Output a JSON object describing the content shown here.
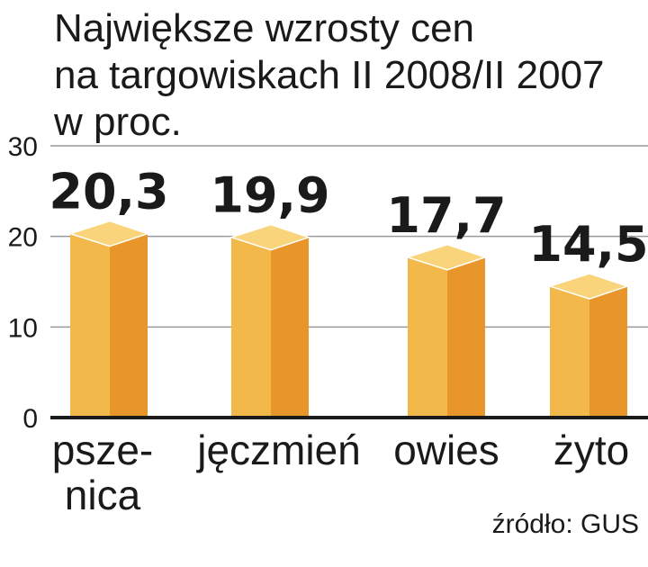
{
  "chart_data": {
    "type": "bar",
    "title_lines": [
      "Największe wzrosty cen",
      "na targowiskach II 2008/II 2007",
      "w proc."
    ],
    "categories": [
      "pszenica",
      "jęczmień",
      "owies",
      "żyto"
    ],
    "category_label_lines": [
      [
        "psze-",
        "nica"
      ],
      [
        "jęczmień"
      ],
      [
        "owies"
      ],
      [
        "żyto"
      ]
    ],
    "values": [
      20.3,
      19.9,
      17.7,
      14.5
    ],
    "value_labels": [
      "20,3",
      "19,9",
      "17,7",
      "14,5"
    ],
    "highlight_index": 0,
    "ylim": [
      0,
      30
    ],
    "yticks": [
      "0",
      "10",
      "20",
      "30"
    ],
    "grid": true,
    "source": "źródło: GUS",
    "colors": {
      "bar_front": "#f2b84a",
      "bar_side": "#e8952a",
      "bar_top": "#f9d47a",
      "highlight_label": "#c4122f",
      "grid": "#9a9a9a",
      "axis": "#1a1a1a"
    }
  }
}
